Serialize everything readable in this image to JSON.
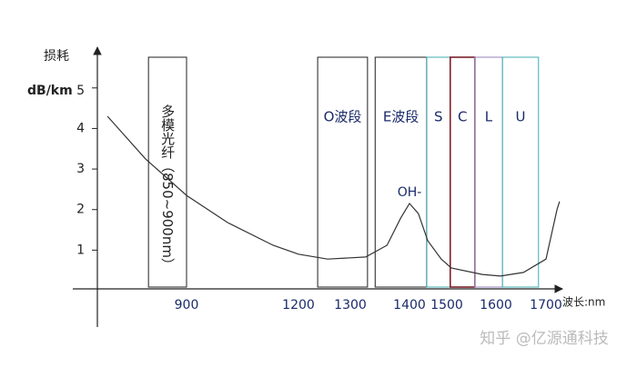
{
  "chart_data": {
    "type": "line",
    "y_label_top": "损耗",
    "y_label_unit": "dB/km",
    "x_label": "波长:nm",
    "annotation": "OH-",
    "watermark": "知乎 @亿源通科技",
    "x": [
      688,
      790,
      900,
      1010,
      1132,
      1200,
      1256,
      1326,
      1362,
      1385,
      1400,
      1424,
      1449,
      1485,
      1509,
      1572,
      1609,
      1655,
      1700,
      1722,
      1727
    ],
    "series": [
      {
        "name": "损耗",
        "color": "#333333",
        "values": [
          4.3,
          3.25,
          2.35,
          1.68,
          1.12,
          0.9,
          0.78,
          0.83,
          1.12,
          1.79,
          2.15,
          1.9,
          1.23,
          0.78,
          0.56,
          0.4,
          0.36,
          0.45,
          0.78,
          2.0,
          2.2
        ]
      }
    ],
    "bands": [
      {
        "label": "多模光纤（850~900nm）",
        "range": [
          798,
          900
        ],
        "color": "#333333"
      },
      {
        "label": "O波段",
        "range": [
          1237,
          1329
        ],
        "color": "#333333"
      },
      {
        "label": "E波段",
        "range": [
          1342,
          1446
        ],
        "color": "#333333"
      },
      {
        "label": "S",
        "range": [
          1446,
          1507
        ],
        "color": "#4fb3b8"
      },
      {
        "label": "C",
        "range": [
          1507,
          1557
        ],
        "color": "#7a1f2a"
      },
      {
        "label": "L",
        "range": [
          1557,
          1613
        ],
        "color": "#9a8cc0"
      },
      {
        "label": "U",
        "range": [
          1613,
          1685
        ],
        "color": "#4fb3b8"
      }
    ],
    "xticks": [
      900,
      1200,
      1300,
      1400,
      1500,
      1600,
      1700
    ],
    "ylim": [
      0,
      5.6
    ],
    "yticks": [
      1,
      2,
      3,
      4,
      5
    ],
    "grid": false
  }
}
